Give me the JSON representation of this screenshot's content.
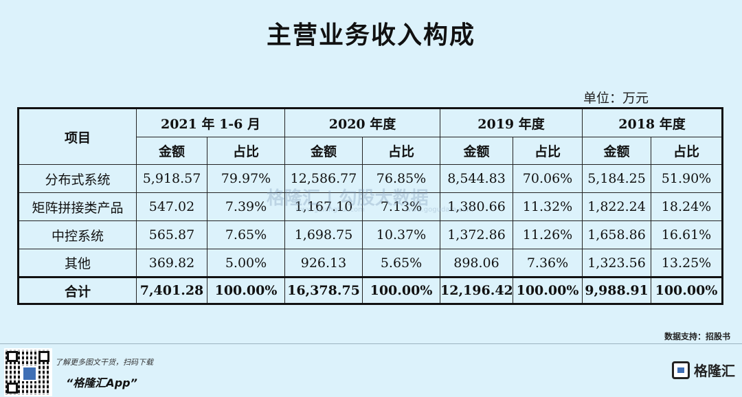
{
  "title": "主营业务收入构成",
  "unit": "单位：万元",
  "table": {
    "item_header": "项目",
    "periods": [
      "2021 年 1-6 月",
      "2020 年度",
      "2019 年度",
      "2018 年度"
    ],
    "sub_headers": [
      "金额",
      "占比"
    ],
    "rows": [
      {
        "label": "分布式系统",
        "cells": [
          "5,918.57",
          "79.97%",
          "12,586.77",
          "76.85%",
          "8,544.83",
          "70.06%",
          "5,184.25",
          "51.90%"
        ]
      },
      {
        "label": "矩阵拼接类产品",
        "cells": [
          "547.02",
          "7.39%",
          "1,167.10",
          "7.13%",
          "1,380.66",
          "11.32%",
          "1,822.24",
          "18.24%"
        ]
      },
      {
        "label": "中控系统",
        "cells": [
          "565.87",
          "7.65%",
          "1,698.75",
          "10.37%",
          "1,372.86",
          "11.26%",
          "1,658.86",
          "16.61%"
        ]
      },
      {
        "label": "其他",
        "cells": [
          "369.82",
          "5.00%",
          "926.13",
          "5.65%",
          "898.06",
          "7.36%",
          "1,323.56",
          "13.25%"
        ]
      },
      {
        "label": "合计",
        "cells": [
          "7,401.28",
          "100.00%",
          "16,378.75",
          "100.00%",
          "12,196.42",
          "100.00%",
          "9,988.91",
          "100.00%"
        ]
      }
    ]
  },
  "watermark": {
    "text": "格隆汇 | 勾股大数据",
    "sub1": "www.gelonghui.com",
    "sub2": "www.gogudata.com"
  },
  "source": "数据支持：招股书",
  "footer": {
    "promo_line": "了解更多图文干货，扫码下载",
    "app_name": "“格隆汇App”",
    "logo_name": "格隆汇"
  }
}
